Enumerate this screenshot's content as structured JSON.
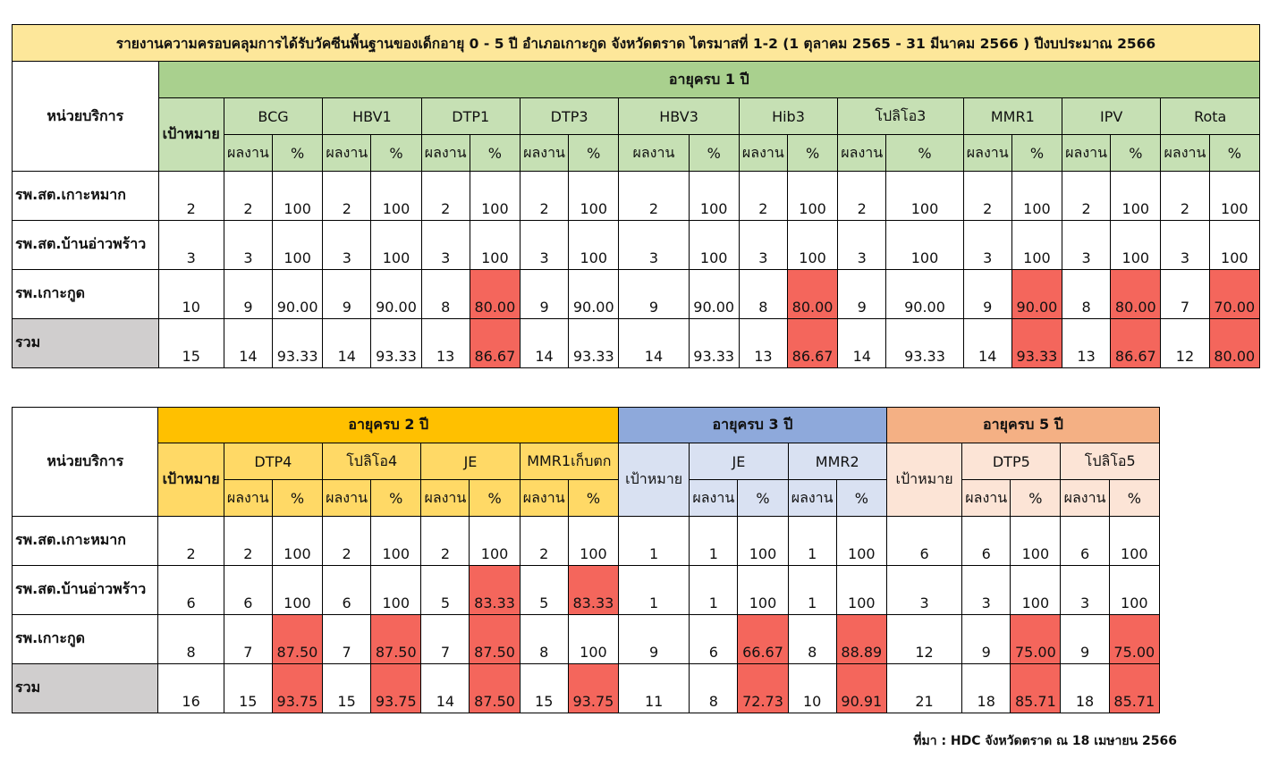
{
  "report_title": "รายงานความครอบคลุมการได้รับวัคซีนพื้นฐานของเด็กอายุ 0 - 5 ปี อำเภอเกาะกูด จังหวัดตราด ไตรมาสที่ 1-2 (1 ตุลาคม 2565 - 31 มีนาคม 2566 ) ปีงบประมาณ 2566",
  "labels": {
    "unit": "หน่วยบริการ",
    "target": "เป้าหมาย",
    "result": "ผลงาน",
    "percent": "%"
  },
  "table1": {
    "age_group": "อายุครบ 1 ปี",
    "vaccines": [
      "BCG",
      "HBV1",
      "DTP1",
      "DTP3",
      "HBV3",
      "Hib3",
      "โปลิโอ3",
      "MMR1",
      "IPV",
      "Rota"
    ],
    "rows": [
      {
        "name": "รพ.สต.เกาะหมาก",
        "target": "2",
        "cells": [
          [
            "2",
            "100"
          ],
          [
            "2",
            "100"
          ],
          [
            "2",
            "100"
          ],
          [
            "2",
            "100"
          ],
          [
            "2",
            "100"
          ],
          [
            "2",
            "100"
          ],
          [
            "2",
            "100"
          ],
          [
            "2",
            "100"
          ],
          [
            "2",
            "100"
          ],
          [
            "2",
            "100"
          ]
        ]
      },
      {
        "name": "รพ.สต.บ้านอ่าวพร้าว",
        "target": "3",
        "cells": [
          [
            "3",
            "100"
          ],
          [
            "3",
            "100"
          ],
          [
            "3",
            "100"
          ],
          [
            "3",
            "100"
          ],
          [
            "3",
            "100"
          ],
          [
            "3",
            "100"
          ],
          [
            "3",
            "100"
          ],
          [
            "3",
            "100"
          ],
          [
            "3",
            "100"
          ],
          [
            "3",
            "100"
          ]
        ]
      },
      {
        "name": "รพ.เกาะกูด",
        "target": "10",
        "cells": [
          [
            "9",
            "90.00"
          ],
          [
            "9",
            "90.00"
          ],
          [
            "8",
            "80.00"
          ],
          [
            "9",
            "90.00"
          ],
          [
            "9",
            "90.00"
          ],
          [
            "8",
            "80.00"
          ],
          [
            "9",
            "90.00"
          ],
          [
            "9",
            "90.00"
          ],
          [
            "8",
            "80.00"
          ],
          [
            "7",
            "70.00"
          ]
        ]
      },
      {
        "name": "รวม",
        "target": "15",
        "cells": [
          [
            "14",
            "93.33"
          ],
          [
            "14",
            "93.33"
          ],
          [
            "13",
            "86.67"
          ],
          [
            "14",
            "93.33"
          ],
          [
            "14",
            "93.33"
          ],
          [
            "13",
            "86.67"
          ],
          [
            "14",
            "93.33"
          ],
          [
            "14",
            "93.33"
          ],
          [
            "13",
            "86.67"
          ],
          [
            "12",
            "80.00"
          ]
        ]
      }
    ]
  },
  "table2": {
    "age2": {
      "label": "อายุครบ 2 ปี",
      "vaccines": [
        "DTP4",
        "โปลิโอ4",
        "JE",
        "MMR1เก็บตก"
      ]
    },
    "age3": {
      "label": "อายุครบ 3 ปี",
      "vaccines": [
        "JE",
        "MMR2"
      ]
    },
    "age5": {
      "label": "อายุครบ 5 ปี",
      "vaccines": [
        "DTP5",
        "โปลิโอ5"
      ]
    },
    "rows": [
      {
        "name": "รพ.สต.เกาะหมาก",
        "t2": "2",
        "a2": [
          [
            "2",
            "100"
          ],
          [
            "2",
            "100"
          ],
          [
            "2",
            "100"
          ],
          [
            "2",
            "100"
          ]
        ],
        "t3": "1",
        "a3": [
          [
            "1",
            "100"
          ],
          [
            "1",
            "100"
          ]
        ],
        "t5": "6",
        "a5": [
          [
            "6",
            "100"
          ],
          [
            "6",
            "100"
          ]
        ]
      },
      {
        "name": "รพ.สต.บ้านอ่าวพร้าว",
        "t2": "6",
        "a2": [
          [
            "6",
            "100"
          ],
          [
            "6",
            "100"
          ],
          [
            "5",
            "83.33"
          ],
          [
            "5",
            "83.33"
          ]
        ],
        "t3": "1",
        "a3": [
          [
            "1",
            "100"
          ],
          [
            "1",
            "100"
          ]
        ],
        "t5": "3",
        "a5": [
          [
            "3",
            "100"
          ],
          [
            "3",
            "100"
          ]
        ]
      },
      {
        "name": "รพ.เกาะกูด",
        "t2": "8",
        "a2": [
          [
            "7",
            "87.50"
          ],
          [
            "7",
            "87.50"
          ],
          [
            "7",
            "87.50"
          ],
          [
            "8",
            "100"
          ]
        ],
        "t3": "9",
        "a3": [
          [
            "6",
            "66.67"
          ],
          [
            "8",
            "88.89"
          ]
        ],
        "t5": "12",
        "a5": [
          [
            "9",
            "75.00"
          ],
          [
            "9",
            "75.00"
          ]
        ]
      },
      {
        "name": "รวม",
        "t2": "16",
        "a2": [
          [
            "15",
            "93.75"
          ],
          [
            "15",
            "93.75"
          ],
          [
            "14",
            "87.50"
          ],
          [
            "15",
            "93.75"
          ]
        ],
        "t3": "11",
        "a3": [
          [
            "8",
            "72.73"
          ],
          [
            "10",
            "90.91"
          ]
        ],
        "t5": "21",
        "a5": [
          [
            "18",
            "85.71"
          ],
          [
            "18",
            "85.71"
          ]
        ]
      }
    ]
  },
  "source": "ที่มา : HDC จังหวัดตราด ณ 18 เมษายน 2566",
  "colors": {
    "title_bg": "#fde79a",
    "age1_header": "#a9d08e",
    "age1_sub": "#c6e0b4",
    "age2_header": "#ffc000",
    "age2_sub": "#ffd966",
    "age3_header": "#8ea9db",
    "age3_sub": "#d9e1f2",
    "age5_header": "#f4b084",
    "age5_sub": "#fce4d6",
    "below_target": "#f4665c",
    "total_label": "#d0cece"
  }
}
